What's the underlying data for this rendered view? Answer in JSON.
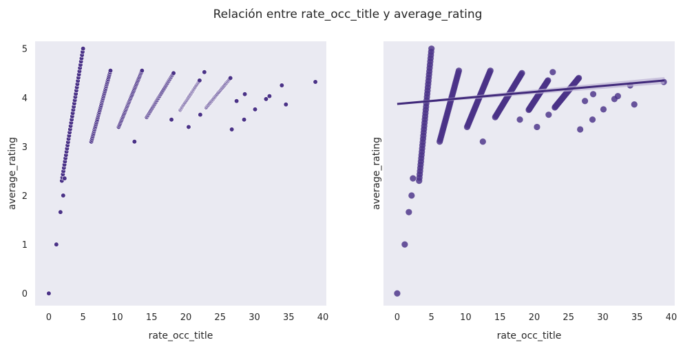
{
  "figure": {
    "title": "Relación entre rate_occ_title y average_rating"
  },
  "colors": {
    "point": "#4a3287",
    "panel_bg": "#eaeaf2",
    "fit_band": "#bdb3d6"
  },
  "chart_data": [
    {
      "type": "scatter",
      "xlabel": "rate_occ_title",
      "ylabel": "average_rating",
      "xlim": [
        -2,
        40.5
      ],
      "ylim": [
        -0.25,
        5.15
      ],
      "xticks": [
        0,
        5,
        10,
        15,
        20,
        25,
        30,
        35,
        40
      ],
      "yticks": [
        0,
        1,
        2,
        3,
        4,
        5
      ],
      "grid": false,
      "clusters": [
        {
          "x": [
            1.9,
            5.0
          ],
          "y": [
            2.3,
            5.0
          ]
        },
        {
          "x": [
            6.2,
            9.0
          ],
          "y": [
            3.1,
            4.55
          ]
        },
        {
          "x": [
            10.2,
            13.6
          ],
          "y": [
            3.4,
            4.55
          ]
        },
        {
          "x": [
            14.3,
            18.2
          ],
          "y": [
            3.6,
            4.5
          ]
        },
        {
          "x": [
            19.2,
            22.0
          ],
          "y": [
            3.75,
            4.35
          ]
        },
        {
          "x": [
            23.0,
            26.5
          ],
          "y": [
            3.8,
            4.4
          ]
        }
      ],
      "points": [
        {
          "x": 0,
          "y": 0
        },
        {
          "x": 1.1,
          "y": 1.0
        },
        {
          "x": 1.7,
          "y": 1.66
        },
        {
          "x": 2.1,
          "y": 2.0
        },
        {
          "x": 2.3,
          "y": 2.35
        },
        {
          "x": 12.5,
          "y": 3.1
        },
        {
          "x": 17.9,
          "y": 3.55
        },
        {
          "x": 20.4,
          "y": 3.4
        },
        {
          "x": 22.1,
          "y": 3.65
        },
        {
          "x": 22.7,
          "y": 4.52
        },
        {
          "x": 26.7,
          "y": 3.35
        },
        {
          "x": 27.4,
          "y": 3.93
        },
        {
          "x": 28.5,
          "y": 3.55
        },
        {
          "x": 28.6,
          "y": 4.07
        },
        {
          "x": 30.1,
          "y": 3.76
        },
        {
          "x": 31.7,
          "y": 3.97
        },
        {
          "x": 32.2,
          "y": 4.03
        },
        {
          "x": 34.0,
          "y": 4.25
        },
        {
          "x": 34.6,
          "y": 3.86
        },
        {
          "x": 38.9,
          "y": 4.32
        }
      ]
    },
    {
      "type": "scatter",
      "xlabel": "rate_occ_title",
      "ylabel": "average_rating",
      "xlim": [
        -2,
        40.5
      ],
      "ylim": [
        -0.25,
        5.15
      ],
      "xticks": [
        0,
        5,
        10,
        15,
        20,
        25,
        30,
        35,
        40
      ],
      "yticks": [],
      "grid": false,
      "regression": {
        "x": [
          0,
          39
        ],
        "y": [
          3.87,
          4.35
        ]
      },
      "clusters": [
        {
          "x": [
            3.2,
            5.0
          ],
          "y": [
            2.3,
            5.0
          ]
        },
        {
          "x": [
            6.2,
            9.0
          ],
          "y": [
            3.1,
            4.55
          ]
        },
        {
          "x": [
            10.2,
            13.6
          ],
          "y": [
            3.4,
            4.55
          ]
        },
        {
          "x": [
            14.3,
            18.2
          ],
          "y": [
            3.6,
            4.5
          ]
        },
        {
          "x": [
            19.2,
            22.0
          ],
          "y": [
            3.75,
            4.35
          ]
        },
        {
          "x": [
            23.0,
            26.5
          ],
          "y": [
            3.8,
            4.4
          ]
        }
      ],
      "points": [
        {
          "x": 0,
          "y": 0
        },
        {
          "x": 1.1,
          "y": 1.0
        },
        {
          "x": 1.7,
          "y": 1.66
        },
        {
          "x": 2.1,
          "y": 2.0
        },
        {
          "x": 2.3,
          "y": 2.35
        },
        {
          "x": 12.5,
          "y": 3.1
        },
        {
          "x": 17.9,
          "y": 3.55
        },
        {
          "x": 20.4,
          "y": 3.4
        },
        {
          "x": 22.1,
          "y": 3.65
        },
        {
          "x": 22.7,
          "y": 4.52
        },
        {
          "x": 26.7,
          "y": 3.35
        },
        {
          "x": 27.4,
          "y": 3.93
        },
        {
          "x": 28.5,
          "y": 3.55
        },
        {
          "x": 28.6,
          "y": 4.07
        },
        {
          "x": 30.1,
          "y": 3.76
        },
        {
          "x": 31.7,
          "y": 3.97
        },
        {
          "x": 32.2,
          "y": 4.03
        },
        {
          "x": 34.0,
          "y": 4.25
        },
        {
          "x": 34.6,
          "y": 3.86
        },
        {
          "x": 38.9,
          "y": 4.32
        }
      ]
    }
  ]
}
